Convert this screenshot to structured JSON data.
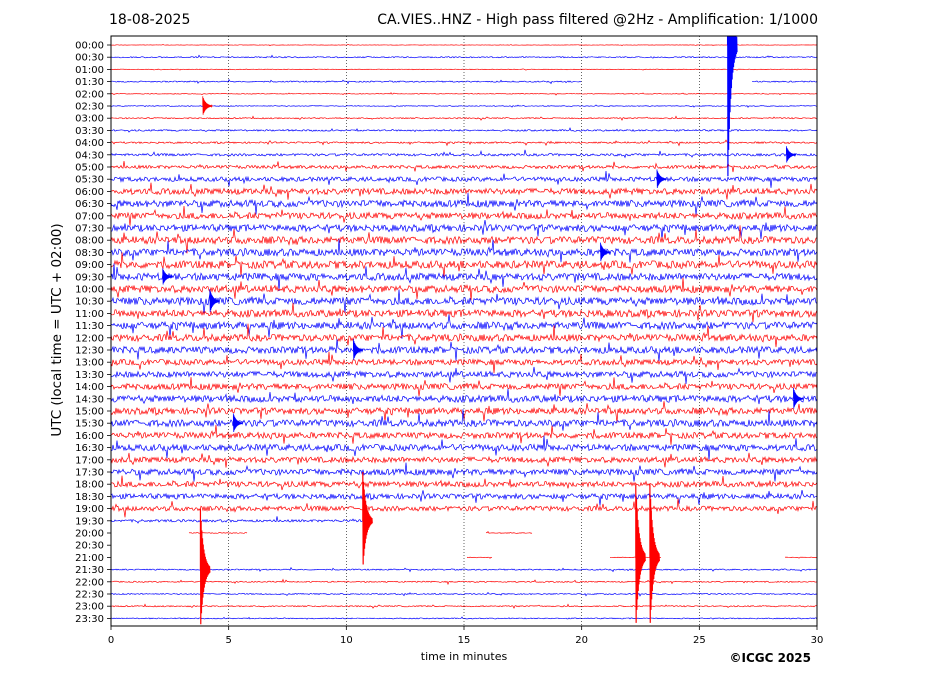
{
  "header": {
    "date": "18-08-2025",
    "title": "CA.VIES..HNZ - High pass filtered @2Hz - Amplification: 1/1000"
  },
  "credit": "©ICGC 2025",
  "colors": {
    "trace_a": "#0000ff",
    "trace_b": "#ff0000",
    "axis": "#000000",
    "grid": "#000000"
  },
  "chart_data": {
    "type": "line",
    "xlabel": "time in minutes",
    "ylabel": "UTC (local time = UTC + 02:00)",
    "xlim": [
      0,
      30
    ],
    "x_ticks": [
      0,
      5,
      10,
      15,
      20,
      25,
      30
    ],
    "x_tick_labels": [
      "0",
      "5",
      "10",
      "15",
      "20",
      "25",
      "30"
    ],
    "grid": "vertical dotted at 5, 10, 15, 20, 25",
    "row_labels": [
      "00:00",
      "00:30",
      "01:00",
      "01:30",
      "02:00",
      "02:30",
      "03:00",
      "03:30",
      "04:00",
      "04:30",
      "05:00",
      "05:30",
      "06:00",
      "06:30",
      "07:00",
      "07:30",
      "08:00",
      "08:30",
      "09:00",
      "09:30",
      "10:00",
      "10:30",
      "11:00",
      "11:30",
      "12:00",
      "12:30",
      "13:00",
      "13:30",
      "14:00",
      "14:30",
      "15:00",
      "15:30",
      "16:00",
      "16:30",
      "17:00",
      "17:30",
      "18:00",
      "18:30",
      "19:00",
      "19:30",
      "20:00",
      "20:30",
      "21:00",
      "21:30",
      "22:00",
      "22:30",
      "23:00",
      "23:30"
    ],
    "row_colors": [
      "red",
      "blue",
      "red",
      "blue",
      "red",
      "blue",
      "red",
      "blue",
      "red",
      "blue",
      "red",
      "blue",
      "red",
      "blue",
      "red",
      "blue",
      "red",
      "blue",
      "red",
      "blue",
      "red",
      "blue",
      "red",
      "blue",
      "red",
      "blue",
      "red",
      "blue",
      "red",
      "blue",
      "red",
      "blue",
      "red",
      "blue",
      "red",
      "blue",
      "red",
      "blue",
      "red",
      "blue",
      "red",
      "blue",
      "red",
      "blue",
      "red",
      "blue",
      "red",
      "blue"
    ],
    "noise_level": [
      0.2,
      0.6,
      0.3,
      0.6,
      0.3,
      0.4,
      0.6,
      0.8,
      0.8,
      1.2,
      1.6,
      2.2,
      3.0,
      3.4,
      3.2,
      3.4,
      3.6,
      3.6,
      3.8,
      3.6,
      3.6,
      3.8,
      3.6,
      3.6,
      3.4,
      3.4,
      2.8,
      3.0,
      3.0,
      3.4,
      3.2,
      3.4,
      3.0,
      3.2,
      2.8,
      3.0,
      2.8,
      2.6,
      2.4,
      1.2,
      0.4,
      0.3,
      0.3,
      0.6,
      0.6,
      0.6,
      0.6,
      0.5
    ],
    "data_gaps": [
      {
        "row": "01:30",
        "from_min": 20.0,
        "to_min": 27.2
      },
      {
        "row": "19:30",
        "from_min": 11.0,
        "to_min": 30.0
      },
      {
        "row": "20:00",
        "from_min": 0.0,
        "to_min": 3.3
      },
      {
        "row": "20:00",
        "from_min": 5.8,
        "to_min": 15.9
      },
      {
        "row": "20:00",
        "from_min": 17.9,
        "to_min": 30.0
      },
      {
        "row": "20:30",
        "from_min": 0.0,
        "to_min": 30.0
      },
      {
        "row": "21:00",
        "from_min": 0.0,
        "to_min": 15.1
      },
      {
        "row": "21:00",
        "from_min": 16.2,
        "to_min": 21.2
      },
      {
        "row": "21:00",
        "from_min": 23.4,
        "to_min": 28.6
      }
    ],
    "events": [
      {
        "row": "00:00",
        "minute": 26.2,
        "amplitude_rows": 12,
        "color": "blue"
      },
      {
        "row": "21:30",
        "minute": 3.8,
        "amplitude_rows": 5,
        "color": "red"
      },
      {
        "row": "21:00",
        "minute": 22.3,
        "amplitude_rows": 6,
        "color": "red"
      },
      {
        "row": "21:00",
        "minute": 22.9,
        "amplitude_rows": 6,
        "color": "red"
      },
      {
        "row": "19:30",
        "minute": 10.7,
        "amplitude_rows": 4,
        "color": "red"
      },
      {
        "row": "02:30",
        "minute": 3.9,
        "amplitude_rows": 0.8,
        "color": "red"
      },
      {
        "row": "05:30",
        "minute": 23.2,
        "amplitude_rows": 0.8,
        "color": "blue"
      },
      {
        "row": "09:30",
        "minute": 2.2,
        "amplitude_rows": 0.7,
        "color": "blue"
      },
      {
        "row": "10:30",
        "minute": 4.2,
        "amplitude_rows": 1.0,
        "color": "blue"
      },
      {
        "row": "12:30",
        "minute": 10.3,
        "amplitude_rows": 0.9,
        "color": "blue"
      },
      {
        "row": "14:30",
        "minute": 29.0,
        "amplitude_rows": 0.9,
        "color": "blue"
      },
      {
        "row": "15:30",
        "minute": 5.2,
        "amplitude_rows": 0.8,
        "color": "blue"
      },
      {
        "row": "04:30",
        "minute": 28.7,
        "amplitude_rows": 0.7,
        "color": "blue"
      },
      {
        "row": "08:30",
        "minute": 20.8,
        "amplitude_rows": 0.8,
        "color": "blue"
      }
    ]
  }
}
